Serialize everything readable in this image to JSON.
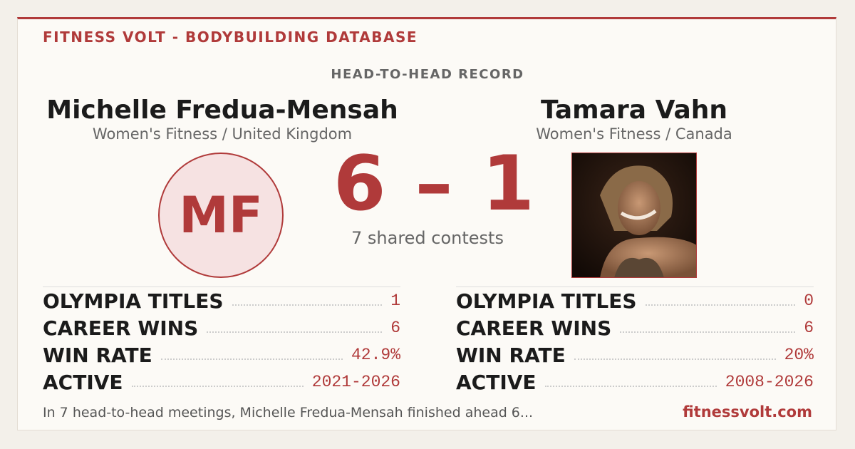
{
  "header": {
    "brand": "FITNESS VOLT - BODYBUILDING DATABASE",
    "section": "HEAD-TO-HEAD RECORD"
  },
  "left": {
    "name": "Michelle Fredua-Mensah",
    "subtitle": "Women's Fitness / United Kingdom",
    "initials": "MF",
    "stats": [
      {
        "label": "OLYMPIA TITLES",
        "value": "1"
      },
      {
        "label": "CAREER WINS",
        "value": "6"
      },
      {
        "label": "WIN RATE",
        "value": "42.9%"
      },
      {
        "label": "ACTIVE",
        "value": "2021-2026"
      }
    ]
  },
  "right": {
    "name": "Tamara Vahn",
    "subtitle": "Women's Fitness / Canada",
    "stats": [
      {
        "label": "OLYMPIA TITLES",
        "value": "0"
      },
      {
        "label": "CAREER WINS",
        "value": "6"
      },
      {
        "label": "WIN RATE",
        "value": "20%"
      },
      {
        "label": "ACTIVE",
        "value": "2008-2026"
      }
    ]
  },
  "score": {
    "text": "6 – 1",
    "caption": "7 shared contests"
  },
  "footer": {
    "summary": "In 7 head-to-head meetings, Michelle Fredua-Mensah finished ahead 6...",
    "site": "fitnessvolt.com"
  }
}
